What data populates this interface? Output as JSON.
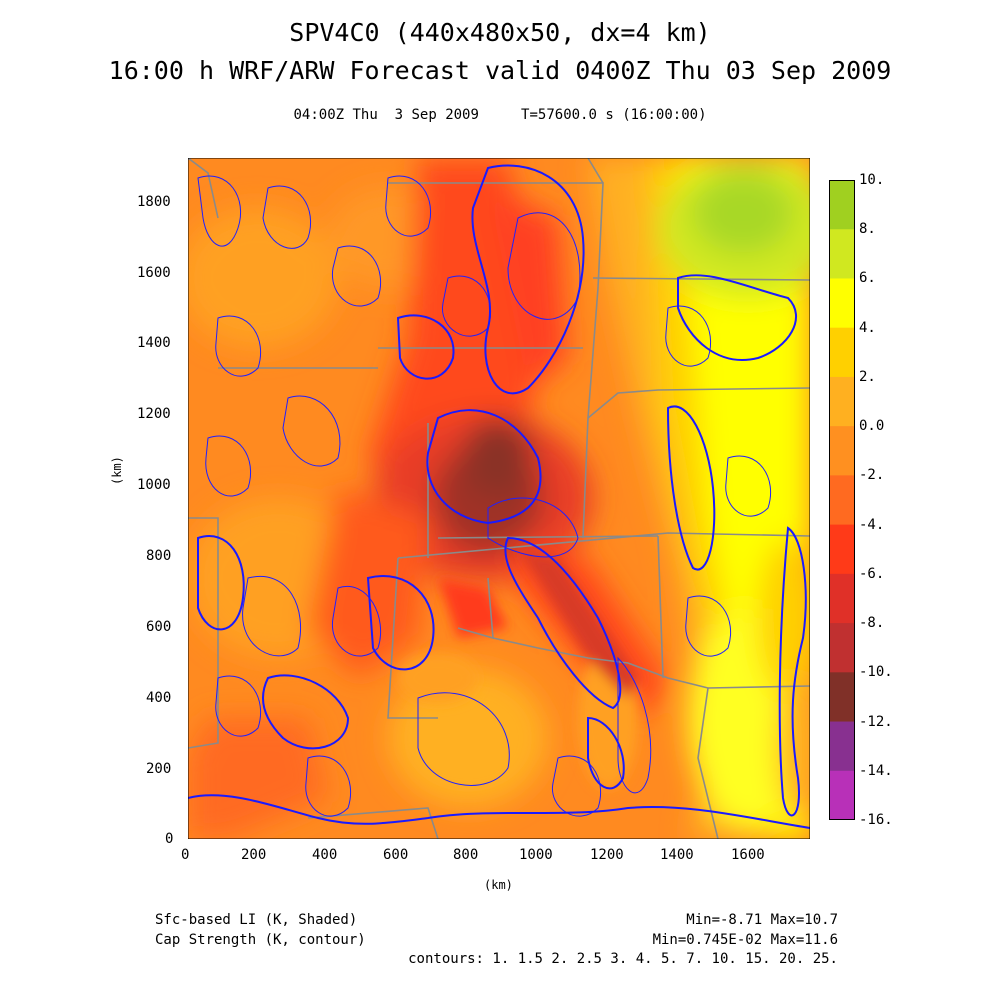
{
  "header": {
    "title_line1": "SPV4C0 (440x480x50, dx=4 km)",
    "title_line2": "16:00 h WRF/ARW Forecast valid 0400Z Thu 03 Sep 2009",
    "time_line": "04:00Z Thu  3 Sep 2009     T=57600.0 s (16:00:00)"
  },
  "axes": {
    "x_label": "(km)",
    "y_label": "(km)",
    "x_ticks": [
      "0",
      "200",
      "400",
      "600",
      "800",
      "1000",
      "1200",
      "1400",
      "1600"
    ],
    "y_ticks": [
      "0",
      "200",
      "400",
      "600",
      "800",
      "1000",
      "1200",
      "1400",
      "1600",
      "1800"
    ],
    "x_range_km": [
      0,
      1760
    ],
    "y_range_km": [
      0,
      1920
    ]
  },
  "colorbar": {
    "labels": [
      "10.",
      "8.",
      "6.",
      "4.",
      "2.",
      "0.0",
      "-2.",
      "-4.",
      "-6.",
      "-8.",
      "-10.",
      "-12.",
      "-14.",
      "-16."
    ],
    "colors": [
      "#a0d020",
      "#d0e820",
      "#ffff00",
      "#ffd000",
      "#ffb020",
      "#ff9020",
      "#ff6a20",
      "#ff3a18",
      "#e03028",
      "#c03030",
      "#803028",
      "#883090",
      "#b830b8",
      "#d840d8"
    ]
  },
  "footer": {
    "left_line1": "Sfc-based LI (K, Shaded)",
    "left_line2": "Cap Strength (K, contour)",
    "right_line1": "Min=-8.71 Max=10.7",
    "right_line2": "Min=0.745E-02 Max=11.6",
    "right_line3": "contours: 1. 1.5 2. 2.5 3. 4. 5. 7. 10. 15. 20. 25."
  }
}
